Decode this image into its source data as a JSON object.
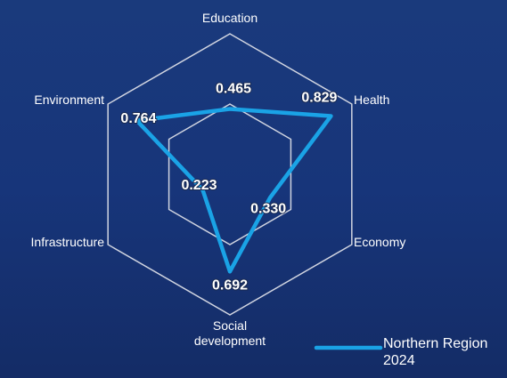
{
  "chart_data": {
    "type": "radar",
    "categories": [
      "Education",
      "Health",
      "Economy",
      "Social development",
      "Infrastructure",
      "Environment"
    ],
    "series": [
      {
        "name": "Northern Region  2024",
        "color": "#1aa3e6",
        "values": [
          0.465,
          0.829,
          0.33,
          0.692,
          0.223,
          0.764
        ],
        "value_labels": [
          "0.465",
          "0.829",
          "0.330",
          "0.692",
          "0.223",
          "0.764"
        ]
      }
    ],
    "rlim": [
      0,
      1
    ],
    "rticks": [
      0.5,
      1
    ],
    "grid": true,
    "legend": "lower right"
  }
}
